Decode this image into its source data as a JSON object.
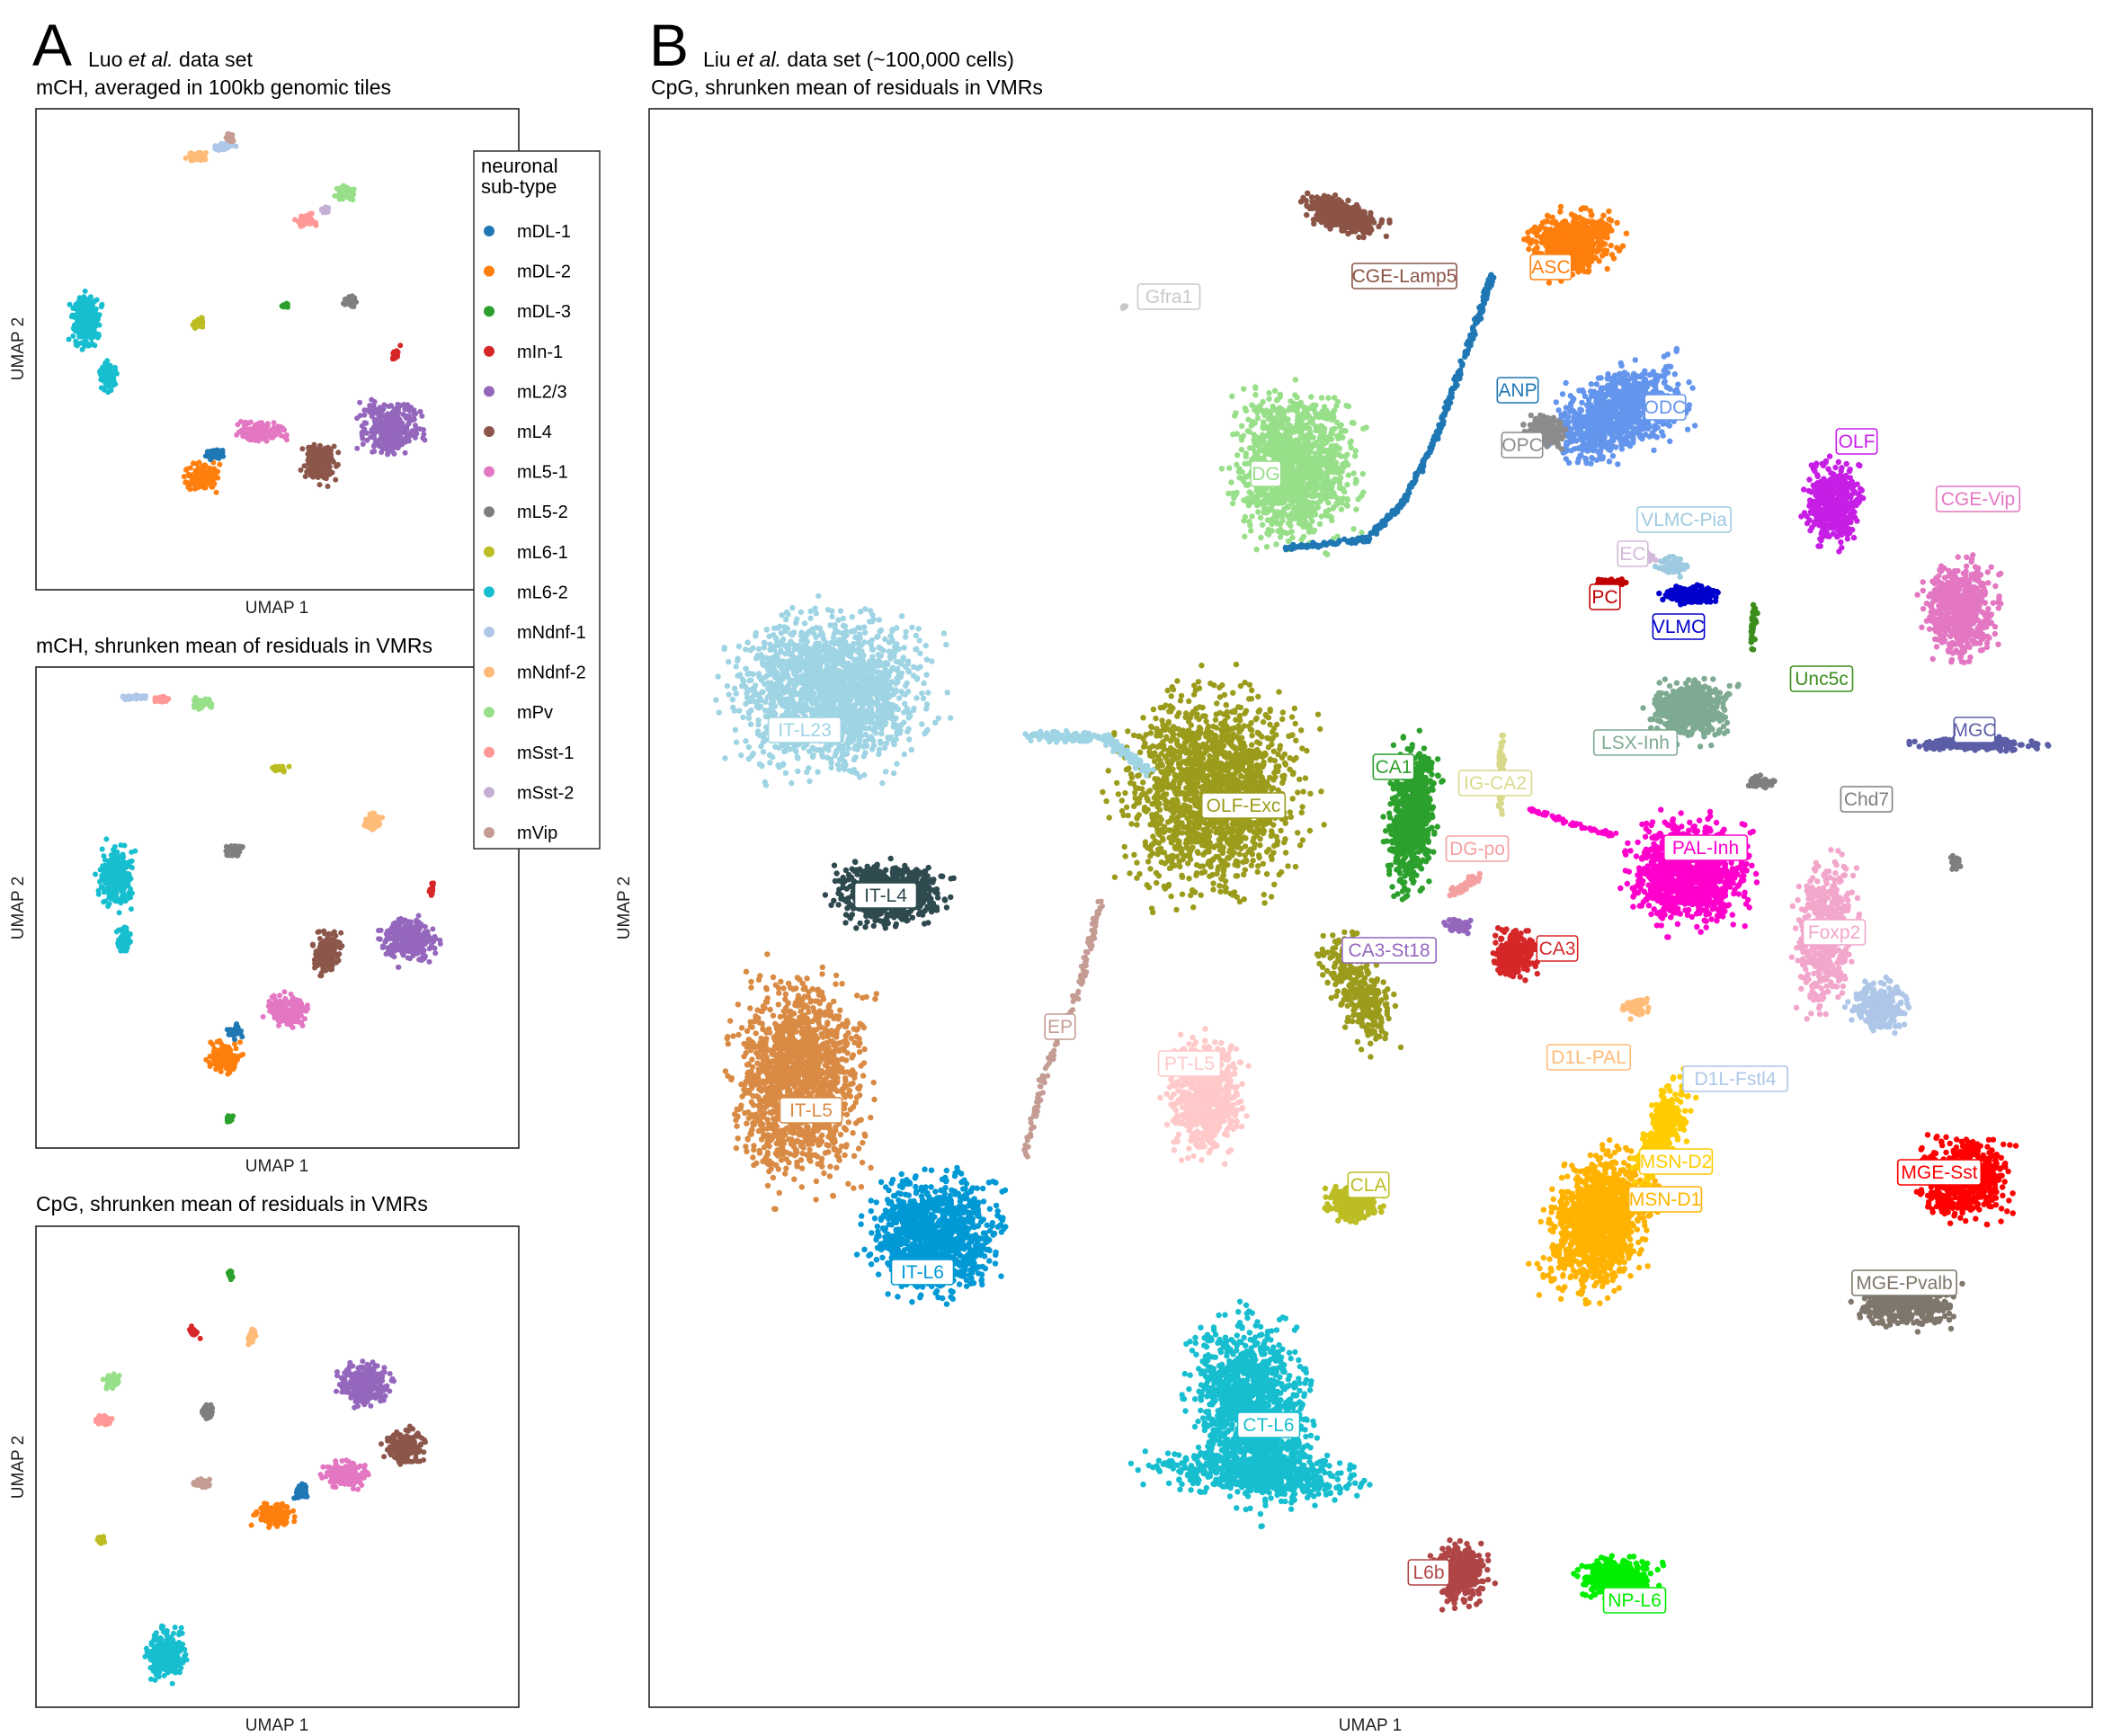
{
  "panel_a": {
    "letter": "A",
    "header_line1_pre": "Luo ",
    "header_line1_ital": "et al.",
    "header_line1_post": " data set",
    "subplot_titles": [
      "mCH, averaged in 100kb genomic tiles",
      "mCH, shrunken mean of residuals in VMRs",
      "CpG, shrunken mean of residuals in VMRs"
    ],
    "xlabel": "UMAP 1",
    "ylabel": "UMAP 2"
  },
  "panel_b": {
    "letter": "B",
    "header_line1_pre": "Liu ",
    "header_line1_ital": "et al.",
    "header_line1_post": " data set (~100,000 cells)",
    "title": "CpG, shrunken mean of residuals in VMRs",
    "xlabel": "UMAP 1",
    "ylabel": "UMAP 2"
  },
  "legend": {
    "title_line1": "neuronal",
    "title_line2": "sub-type",
    "items": [
      {
        "label": "mDL-1",
        "color": "#1f77b4"
      },
      {
        "label": "mDL-2",
        "color": "#ff7f0e"
      },
      {
        "label": "mDL-3",
        "color": "#2ca02c"
      },
      {
        "label": "mIn-1",
        "color": "#d62728"
      },
      {
        "label": "mL2/3",
        "color": "#9467bd"
      },
      {
        "label": "mL4",
        "color": "#8c564b"
      },
      {
        "label": "mL5-1",
        "color": "#e377c2"
      },
      {
        "label": "mL5-2",
        "color": "#7f7f7f"
      },
      {
        "label": "mL6-1",
        "color": "#bcbd22"
      },
      {
        "label": "mL6-2",
        "color": "#17becf"
      },
      {
        "label": "mNdnf-1",
        "color": "#aec7e8"
      },
      {
        "label": "mNdnf-2",
        "color": "#ffbb78"
      },
      {
        "label": "mPv",
        "color": "#98df8a"
      },
      {
        "label": "mSst-1",
        "color": "#ff9896"
      },
      {
        "label": "mSst-2",
        "color": "#c5b0d5"
      },
      {
        "label": "mVip",
        "color": "#c49c94"
      }
    ]
  },
  "chart_data": [
    {
      "type": "scatter",
      "title": "mCH, averaged in 100kb genomic tiles",
      "xlabel": "UMAP 1",
      "ylabel": "UMAP 2",
      "grid": false,
      "axis_ticks": false,
      "legend": "shared, right of plot",
      "series": [
        "mDL-1",
        "mDL-2",
        "mDL-3",
        "mIn-1",
        "mL2/3",
        "mL4",
        "mL5-1",
        "mL5-2",
        "mL6-1",
        "mL6-2",
        "mNdnf-1",
        "mNdnf-2",
        "mPv",
        "mSst-1",
        "mSst-2",
        "mVip"
      ]
    },
    {
      "type": "scatter",
      "title": "mCH, shrunken mean of residuals in VMRs",
      "xlabel": "UMAP 1",
      "ylabel": "UMAP 2",
      "grid": false,
      "axis_ticks": false,
      "series": [
        "mDL-1",
        "mDL-2",
        "mDL-3",
        "mIn-1",
        "mL2/3",
        "mL4",
        "mL5-1",
        "mL5-2",
        "mL6-1",
        "mL6-2",
        "mNdnf-1",
        "mNdnf-2",
        "mPv",
        "mSst-1",
        "mSst-2",
        "mVip"
      ]
    },
    {
      "type": "scatter",
      "title": "CpG, shrunken mean of residuals in VMRs",
      "xlabel": "UMAP 1",
      "ylabel": "UMAP 2",
      "grid": false,
      "axis_ticks": false,
      "series": [
        "mDL-1",
        "mDL-2",
        "mDL-3",
        "mIn-1",
        "mL2/3",
        "mL4",
        "mL5-1",
        "mL5-2",
        "mL6-1",
        "mL6-2",
        "mNdnf-1",
        "mNdnf-2",
        "mPv",
        "mSst-1",
        "mSst-2",
        "mVip"
      ]
    },
    {
      "type": "scatter",
      "title": "CpG, shrunken mean of residuals in VMRs",
      "xlabel": "UMAP 1",
      "ylabel": "UMAP 2",
      "grid": false,
      "axis_ticks": false,
      "cluster_labels": [
        {
          "label": "Gfra1",
          "color": "#c9c9c9"
        },
        {
          "label": "CGE-Lamp5",
          "color": "#8b5446"
        },
        {
          "label": "ASC",
          "color": "#ff7f0e"
        },
        {
          "label": "ANP",
          "color": "#1f77b4"
        },
        {
          "label": "ODC",
          "color": "#6495ed"
        },
        {
          "label": "OPC",
          "color": "#8c8c8c"
        },
        {
          "label": "DG",
          "color": "#98df8a"
        },
        {
          "label": "OLF",
          "color": "#c71ee6"
        },
        {
          "label": "CGE-Vip",
          "color": "#e377c2"
        },
        {
          "label": "VLMC-Pia",
          "color": "#9ecae1"
        },
        {
          "label": "EC",
          "color": "#d4b9da"
        },
        {
          "label": "PC",
          "color": "#c00000"
        },
        {
          "label": "VLMC",
          "color": "#0000cc"
        },
        {
          "label": "Unc5c",
          "color": "#3c8d1c"
        },
        {
          "label": "IT-L23",
          "color": "#9ed4e4"
        },
        {
          "label": "MGC",
          "color": "#5b5ea6"
        },
        {
          "label": "LSX-Inh",
          "color": "#7faa92"
        },
        {
          "label": "Chd7",
          "color": "#7f7f7f"
        },
        {
          "label": "CA1",
          "color": "#2ca02c"
        },
        {
          "label": "IG-CA2",
          "color": "#d9d98c"
        },
        {
          "label": "OLF-Exc",
          "color": "#9b9b1c"
        },
        {
          "label": "DG-po",
          "color": "#f4a0a0"
        },
        {
          "label": "PAL-Inh",
          "color": "#ff00cc"
        },
        {
          "label": "IT-L4",
          "color": "#2f4a4f"
        },
        {
          "label": "CA3-St18",
          "color": "#9467bd"
        },
        {
          "label": "CA3",
          "color": "#d62728"
        },
        {
          "label": "Foxp2",
          "color": "#f2a6cb"
        },
        {
          "label": "EP",
          "color": "#c49c94"
        },
        {
          "label": "PT-L5",
          "color": "#ffc9c9"
        },
        {
          "label": "D1L-PAL",
          "color": "#ffbb78"
        },
        {
          "label": "D1L-Fstl4",
          "color": "#aec7e8"
        },
        {
          "label": "IT-L5",
          "color": "#d98b45"
        },
        {
          "label": "MSN-D2",
          "color": "#ffcc00"
        },
        {
          "label": "MGE-Sst",
          "color": "#ff0000"
        },
        {
          "label": "MSN-D1",
          "color": "#ffb300"
        },
        {
          "label": "CLA",
          "color": "#bcbd22"
        },
        {
          "label": "IT-L6",
          "color": "#0099d6"
        },
        {
          "label": "MGE-Pvalb",
          "color": "#7f766c"
        },
        {
          "label": "CT-L6",
          "color": "#17becf"
        },
        {
          "label": "L6b",
          "color": "#b04545"
        },
        {
          "label": "NP-L6",
          "color": "#00ee00"
        }
      ]
    }
  ]
}
